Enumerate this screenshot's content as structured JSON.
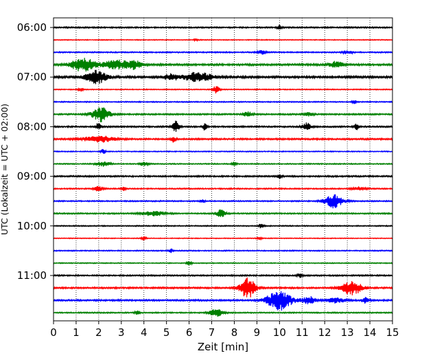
{
  "chart_data": {
    "type": "line",
    "xlabel": "Zeit  [min]",
    "ylabel": "UTC (Lokalzeit = UTC + 02:00)",
    "xlim": [
      0,
      15
    ],
    "x_ticks": [
      0,
      1,
      2,
      3,
      4,
      5,
      6,
      7,
      8,
      9,
      10,
      11,
      12,
      13,
      14,
      15
    ],
    "y_tick_labels": [
      "06:00",
      "07:00",
      "08:00",
      "09:00",
      "10:00",
      "11:00"
    ],
    "y_tick_rows": [
      0,
      4,
      8,
      12,
      16,
      20
    ],
    "grid": "vertical dotted lines at each minute",
    "colors": [
      "#000000",
      "#ff0000",
      "#0000ff",
      "#008000"
    ],
    "rows": [
      {
        "start": "06:00",
        "noise": 0.1,
        "events": [
          [
            10.0,
            0.4,
            0.1
          ]
        ]
      },
      {
        "start": "06:15",
        "noise": 0.06,
        "events": [
          [
            6.3,
            0.2,
            0.1
          ]
        ]
      },
      {
        "start": "06:30",
        "noise": 0.09,
        "events": [
          [
            9.2,
            0.3,
            0.2
          ],
          [
            13.0,
            0.3,
            0.2
          ]
        ]
      },
      {
        "start": "06:45",
        "noise": 0.14,
        "events": [
          [
            1.3,
            1.2,
            0.5
          ],
          [
            2.8,
            0.7,
            0.6
          ],
          [
            3.6,
            0.6,
            0.3
          ],
          [
            12.5,
            0.5,
            0.3
          ]
        ]
      },
      {
        "start": "07:00",
        "noise": 0.16,
        "events": [
          [
            1.9,
            1.1,
            0.45
          ],
          [
            5.2,
            0.6,
            0.3
          ],
          [
            6.4,
            0.8,
            0.6
          ]
        ]
      },
      {
        "start": "07:15",
        "noise": 0.07,
        "events": [
          [
            7.2,
            0.6,
            0.15
          ],
          [
            1.2,
            0.3,
            0.1
          ]
        ]
      },
      {
        "start": "07:30",
        "noise": 0.08,
        "events": [
          [
            13.3,
            0.3,
            0.1
          ]
        ]
      },
      {
        "start": "07:45",
        "noise": 0.11,
        "events": [
          [
            2.1,
            1.2,
            0.4
          ],
          [
            8.6,
            0.4,
            0.2
          ],
          [
            11.3,
            0.3,
            0.2
          ]
        ]
      },
      {
        "start": "08:00",
        "noise": 0.11,
        "events": [
          [
            2.0,
            0.7,
            0.12
          ],
          [
            5.4,
            1.0,
            0.15
          ],
          [
            6.7,
            0.6,
            0.1
          ],
          [
            11.2,
            0.6,
            0.2
          ],
          [
            13.4,
            0.5,
            0.1
          ]
        ]
      },
      {
        "start": "08:15",
        "noise": 0.12,
        "events": [
          [
            2.0,
            0.5,
            0.7
          ],
          [
            5.3,
            0.5,
            0.1
          ]
        ]
      },
      {
        "start": "08:30",
        "noise": 0.07,
        "events": [
          [
            2.2,
            0.5,
            0.1
          ]
        ]
      },
      {
        "start": "08:45",
        "noise": 0.08,
        "events": [
          [
            2.2,
            0.4,
            0.3
          ],
          [
            4.0,
            0.3,
            0.2
          ],
          [
            8.0,
            0.3,
            0.1
          ]
        ]
      },
      {
        "start": "09:00",
        "noise": 0.11,
        "events": [
          [
            10.0,
            0.4,
            0.1
          ]
        ]
      },
      {
        "start": "09:15",
        "noise": 0.09,
        "events": [
          [
            2.0,
            0.4,
            0.2
          ],
          [
            3.1,
            0.3,
            0.1
          ],
          [
            13.5,
            0.3,
            0.3
          ]
        ]
      },
      {
        "start": "09:30",
        "noise": 0.09,
        "events": [
          [
            12.4,
            1.1,
            0.4
          ],
          [
            6.6,
            0.3,
            0.1
          ]
        ]
      },
      {
        "start": "09:45",
        "noise": 0.1,
        "events": [
          [
            4.4,
            0.4,
            0.5
          ],
          [
            7.4,
            0.6,
            0.2
          ]
        ]
      },
      {
        "start": "10:00",
        "noise": 0.08,
        "events": [
          [
            9.2,
            0.4,
            0.1
          ]
        ]
      },
      {
        "start": "10:15",
        "noise": 0.06,
        "events": [
          [
            4.0,
            0.3,
            0.1
          ],
          [
            9.1,
            0.3,
            0.1
          ]
        ]
      },
      {
        "start": "10:30",
        "noise": 0.08,
        "events": [
          [
            5.2,
            0.3,
            0.1
          ]
        ]
      },
      {
        "start": "10:45",
        "noise": 0.07,
        "events": [
          [
            6.0,
            0.4,
            0.1
          ]
        ]
      },
      {
        "start": "11:00",
        "noise": 0.1,
        "events": [
          [
            10.9,
            0.4,
            0.1
          ]
        ]
      },
      {
        "start": "11:15",
        "noise": 0.12,
        "events": [
          [
            8.6,
            1.6,
            0.35
          ],
          [
            13.2,
            1.1,
            0.45
          ]
        ]
      },
      {
        "start": "11:30",
        "noise": 0.12,
        "events": [
          [
            10.0,
            1.6,
            0.55
          ],
          [
            11.3,
            0.6,
            0.3
          ],
          [
            13.8,
            0.5,
            0.15
          ],
          [
            12.5,
            0.4,
            0.4
          ]
        ]
      },
      {
        "start": "11:45",
        "noise": 0.09,
        "events": [
          [
            7.2,
            0.6,
            0.3
          ],
          [
            3.7,
            0.3,
            0.1
          ]
        ]
      }
    ]
  }
}
